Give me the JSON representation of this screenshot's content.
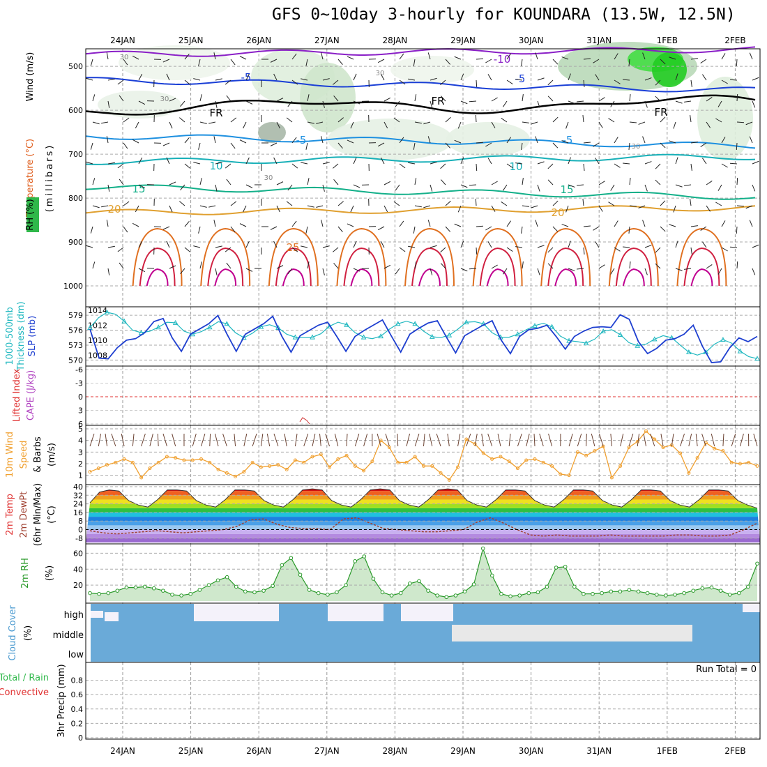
{
  "title": "GFS 0~10day 3-hourly for KOUNDARA (13.5W, 12.5N)",
  "dates": [
    "24JAN",
    "25JAN",
    "26JAN",
    "27JAN",
    "28JAN",
    "29JAN",
    "30JAN",
    "31JAN",
    "1FEB",
    "2FEB"
  ],
  "colors": {
    "rh_green": "#2fb84a",
    "temp_purple": "#8a1fc7",
    "temp_blue": "#1a3fd6",
    "temp_lightblue": "#1e90e0",
    "temp_cyan": "#18b0b8",
    "temp_teal": "#14b08a",
    "temp_gold": "#e0a030",
    "temp_orange": "#e07020",
    "temp_red": "#d02040",
    "temp_magenta": "#c00090",
    "freezing": "#000000",
    "slp": "#1e3fd0",
    "thickness": "#20b8c0",
    "wind10": "#f0a030",
    "dewpt": "#a04030",
    "rh2m": "#2a9a2a",
    "cloud": "#6aaad8",
    "cloud_none": "#f4f2fa",
    "cloud_middle": "#e8e8e8",
    "precip_total": "#2fb84a",
    "precip_conv": "#e03030",
    "li_zero": "#e03030"
  },
  "panels": {
    "upper": {
      "ylabel_rh": "RH (%)",
      "ylabel_temp": "Temperature (°C)",
      "ylabel_wind": "Wind (m/s)",
      "ylabel_p": "(millibars)",
      "yticks": [
        "500",
        "600",
        "700",
        "800",
        "900",
        "1000"
      ],
      "isotherm_labels": [
        "-10",
        "-5",
        "-5",
        "FR",
        "FR",
        "FR",
        "-5",
        "-5",
        "10",
        "10",
        "15",
        "15",
        "20",
        "20",
        "25",
        "30",
        "30",
        "30",
        "30",
        "30"
      ]
    },
    "thickness": {
      "ylabel1": "1000-500mb",
      "ylabel2": "Thickness (dm)",
      "ylabel3": "SLP (mb)",
      "left_ticks": [
        "579",
        "576",
        "573",
        "570"
      ],
      "right_ticks": [
        "1014",
        "1012",
        "1010",
        "1008"
      ]
    },
    "li": {
      "ylabel1": "Lifted Index",
      "ylabel2": "CAPE (J/kg)",
      "ticks": [
        "-6",
        "-3",
        "0",
        "3",
        "6"
      ]
    },
    "wind": {
      "ylabel1": "10m Wind",
      "ylabel2": "Speed",
      "ylabel3": "& Barbs",
      "ylabel4": "(m/s)",
      "ticks": [
        "5",
        "4",
        "3",
        "2",
        "1"
      ]
    },
    "temp": {
      "ylabel1": "2m Temp",
      "ylabel2": "2m DewPt",
      "ylabel3": "(6hr Min/Max)",
      "ylabel4": "(°C)",
      "ticks": [
        "40",
        "32",
        "24",
        "16",
        "8",
        "0",
        "-8"
      ]
    },
    "rh": {
      "ylabel1": "2m RH",
      "ylabel2": "(%)",
      "ticks": [
        "60",
        "40",
        "20"
      ]
    },
    "cloud": {
      "ylabel1": "Cloud Cover",
      "ylabel2": "(%)",
      "levels": [
        "high",
        "middle",
        "low"
      ]
    },
    "precip": {
      "ylabel1": "Total / Rain",
      "ylabel2": "Convective",
      "ylabel3": "3hr Precip (mm)",
      "ticks": [
        "0.8",
        "0.6",
        "0.4",
        "0.2",
        "0"
      ],
      "run_total": "Run Total = 0"
    }
  },
  "chart_data": [
    {
      "type": "line",
      "title": "",
      "xlabel": "",
      "ylabel": "SLP (mb) / 1000-500mb Thickness (dm)",
      "series": [
        {
          "name": "SLP (mb)",
          "axis": "right",
          "ylim": [
            1007,
            1014
          ],
          "values": [
            1011.5,
            1007.6,
            1007.5,
            1009,
            1010,
            1010.2,
            1011,
            1012.5,
            1012.9,
            1010.3,
            1008.5,
            1010.8,
            1011.5,
            1012.2,
            1013.3,
            1010.8,
            1008.5,
            1010.8,
            1011.5,
            1012.2,
            1013.2,
            1010.5,
            1008.4,
            1010.6,
            1011.3,
            1012,
            1012.4,
            1010.5,
            1008.5,
            1010.5,
            1011.3,
            1012,
            1012.7,
            1010.5,
            1008.4,
            1010.8,
            1011.6,
            1012.3,
            1012.6,
            1010.4,
            1008.3,
            1010.6,
            1011.3,
            1012,
            1012.6,
            1010,
            1008.2,
            1010.5,
            1011.4,
            1011.6,
            1012,
            1010.5,
            1008.8,
            1010.5,
            1011.2,
            1011.7,
            1011.8,
            1011.7,
            1013.4,
            1012.8,
            1009.8,
            1008.2,
            1008.9,
            1010,
            1010.2,
            1010.8,
            1012,
            1009.2,
            1007,
            1007.1,
            1009,
            1010.3,
            1009.8,
            1010.5
          ]
        },
        {
          "name": "1000-500mb Thickness (dm)",
          "axis": "left",
          "ylim": [
            569.5,
            580
          ],
          "values": [
            576.5,
            578.5,
            579.6,
            579.2,
            577.8,
            576,
            575.5,
            575.8,
            576.6,
            577.6,
            577.5,
            575.8,
            575.2,
            575.7,
            576.6,
            577.7,
            577.3,
            575.5,
            574.5,
            575.4,
            576.7,
            577.1,
            576.5,
            575.2,
            574.6,
            574.5,
            574.6,
            575.3,
            576.8,
            577.6,
            577.1,
            575.5,
            574.6,
            574.3,
            574.8,
            576.2,
            577.3,
            577.8,
            577.3,
            575.8,
            574.7,
            574.5,
            575,
            576.2,
            577.6,
            577.7,
            577.3,
            575.5,
            574.6,
            574.6,
            575.2,
            576.1,
            576.9,
            577.4,
            576.7,
            574.8,
            573.9,
            573.7,
            573.4,
            574.2,
            575.8,
            576.1,
            575.1,
            573.5,
            572.9,
            573.2,
            574.2,
            574.9,
            574.5,
            573,
            571.6,
            571,
            571.6,
            573.2,
            574.1,
            573.4,
            571.8,
            570.7,
            570.3
          ]
        }
      ]
    },
    {
      "type": "line",
      "title": "",
      "xlabel": "",
      "ylabel": "10m Wind Speed (m/s)",
      "ylim": [
        0.5,
        5
      ],
      "series": [
        {
          "name": "10m Wind Speed",
          "values": [
            1.3,
            1.6,
            1.9,
            2.1,
            2.4,
            2.1,
            0.8,
            1.6,
            2.1,
            2.6,
            2.5,
            2.3,
            2.3,
            2.4,
            2.1,
            1.5,
            1.2,
            0.9,
            1.3,
            2.1,
            1.7,
            1.8,
            1.9,
            1.5,
            2.3,
            2.1,
            2.6,
            2.8,
            1.7,
            2.4,
            2.7,
            1.8,
            1.4,
            2.2,
            4,
            3.4,
            2.1,
            2.1,
            2.6,
            1.8,
            1.8,
            1.2,
            0.6,
            1.7,
            4.1,
            3.7,
            2.9,
            2.4,
            2.6,
            2.2,
            1.6,
            2.3,
            2.4,
            2.1,
            1.8,
            1.1,
            1,
            3,
            2.7,
            3.1,
            3.5,
            0.8,
            1.8,
            3.4,
            3.9,
            4.8,
            4.1,
            3.4,
            3.6,
            2.9,
            1.2,
            2.5,
            3.8,
            3.3,
            3.1,
            2.1,
            2,
            2.1,
            1.8
          ]
        }
      ]
    },
    {
      "type": "area",
      "title": "",
      "xlabel": "",
      "ylabel": "2m Temp / 2m DewPt (°C)",
      "ylim": [
        -12,
        40
      ],
      "series": [
        {
          "name": "2m Temp",
          "values": [
            25,
            35,
            37,
            36,
            27,
            23,
            21,
            28,
            37,
            37,
            36,
            27,
            23,
            21,
            28,
            37,
            37,
            36,
            27,
            23,
            21,
            28,
            37,
            38,
            37,
            27,
            23,
            21,
            28,
            37,
            38,
            37,
            27,
            23,
            21,
            28,
            37,
            38,
            37,
            27,
            23,
            21,
            28,
            37,
            37,
            36,
            27,
            23,
            21,
            28,
            37,
            37,
            36,
            27,
            23,
            21,
            28,
            37,
            37,
            36,
            27,
            23,
            21,
            28,
            37,
            37,
            36,
            27,
            23,
            20
          ]
        },
        {
          "name": "2m DewPt",
          "values": [
            -1,
            -3,
            -4,
            -3,
            -2,
            -1,
            -2,
            -3,
            -2,
            -1,
            0,
            3,
            9,
            10,
            5,
            2,
            1,
            1,
            0,
            10,
            11,
            6,
            1,
            0,
            -1,
            -2,
            -2,
            -1,
            0,
            7,
            11,
            6,
            0,
            -5,
            -6,
            -5,
            -6,
            -6,
            -6,
            -5,
            -6,
            -6,
            -6,
            -6,
            -5,
            -5,
            -6,
            -6,
            -5,
            0,
            6
          ]
        }
      ]
    },
    {
      "type": "area",
      "title": "",
      "xlabel": "",
      "ylabel": "2m RH (%)",
      "ylim": [
        0,
        70
      ],
      "series": [
        {
          "name": "2m RH",
          "values": [
            10,
            9,
            10,
            13,
            17,
            17,
            18,
            16,
            13,
            8,
            7,
            9,
            14,
            20,
            26,
            30,
            18,
            12,
            11,
            13,
            19,
            45,
            54,
            33,
            14,
            10,
            8,
            11,
            20,
            50,
            56,
            28,
            11,
            7,
            10,
            22,
            25,
            13,
            7,
            5,
            7,
            12,
            21,
            66,
            32,
            9,
            6,
            7,
            10,
            11,
            18,
            42,
            43,
            18,
            9,
            9,
            10,
            12,
            12,
            14,
            12,
            10,
            8,
            7,
            8,
            10,
            13,
            16,
            17,
            13,
            8,
            10,
            18,
            47
          ]
        }
      ]
    },
    {
      "type": "bar",
      "title": "",
      "xlabel": "",
      "ylabel": "3hr Precip (mm)",
      "ylim": [
        0,
        1
      ],
      "series": [
        {
          "name": "Total / Rain",
          "values": []
        },
        {
          "name": "Convective",
          "values": []
        }
      ]
    }
  ]
}
